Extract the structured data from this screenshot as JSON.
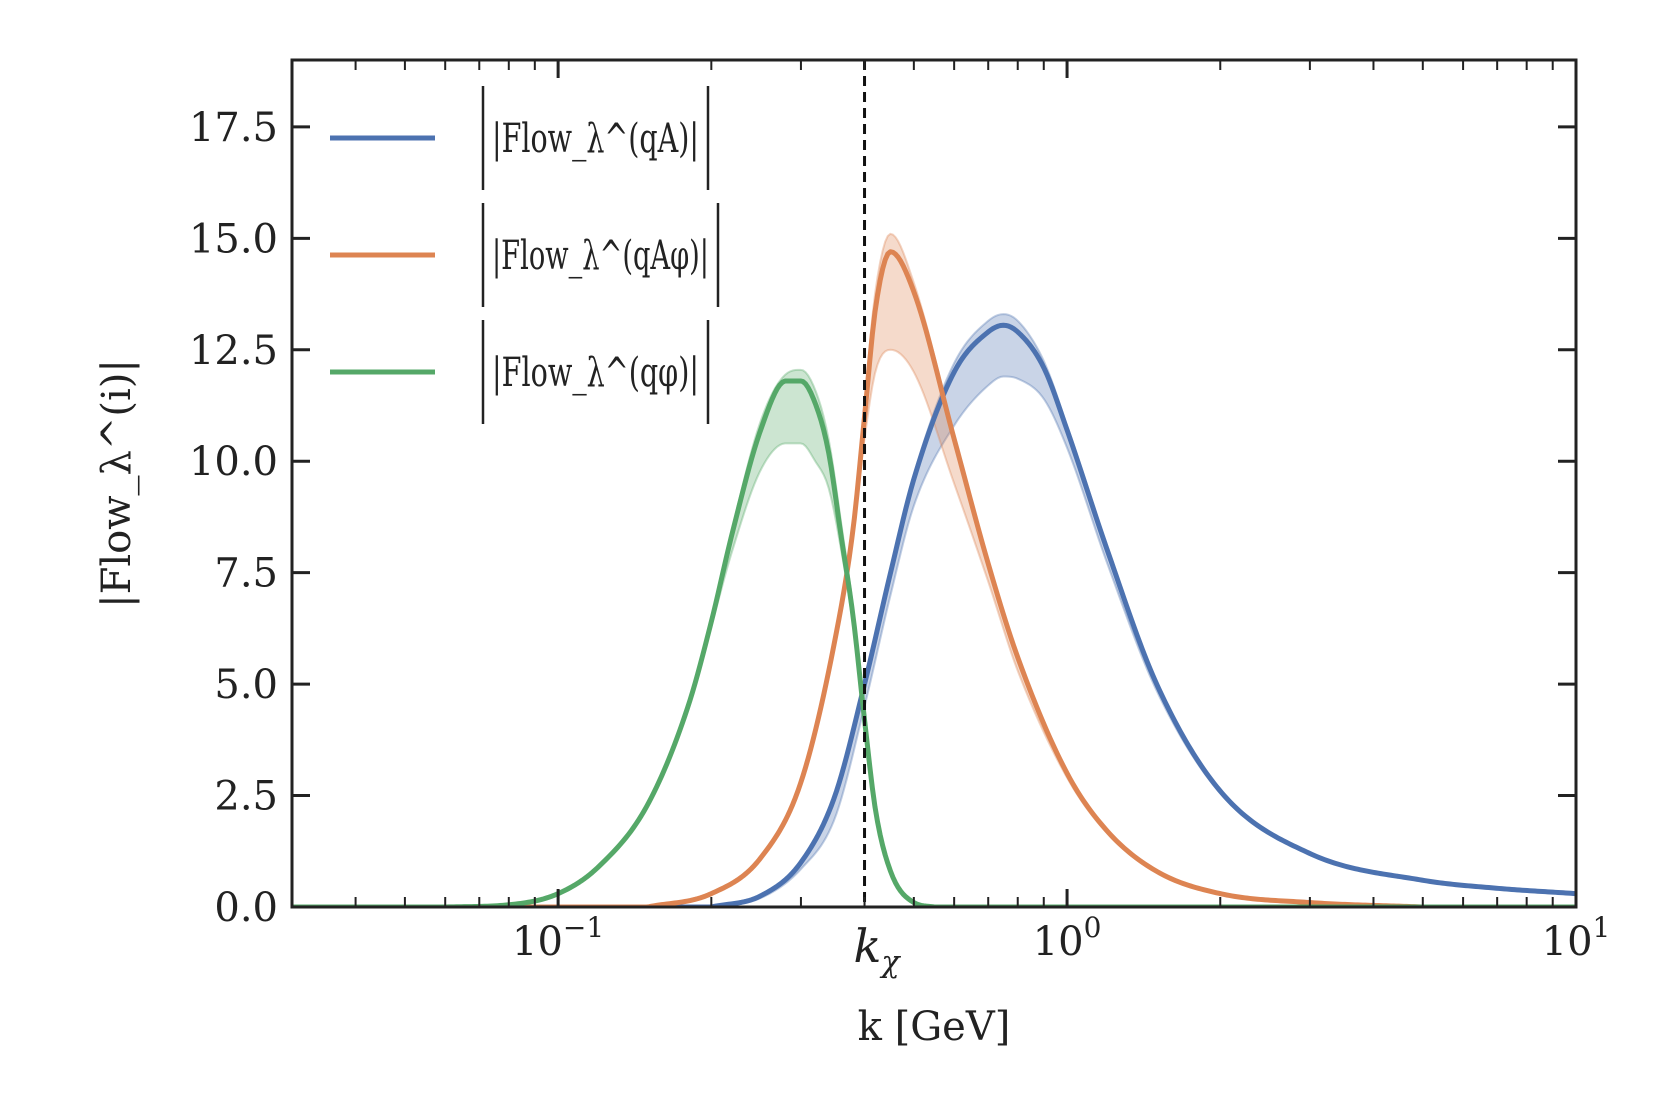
{
  "chart_data": {
    "type": "line",
    "title": "",
    "xlabel": "k [GeV]",
    "ylabel": "|Flow_λ^(i)|",
    "xscale": "log",
    "xlim": [
      0.03,
      10
    ],
    "ylim": [
      0,
      19
    ],
    "grid": false,
    "legend_position": "top-left",
    "x_ticks": [
      {
        "value": 0.1,
        "base": "10",
        "exp": "−1"
      },
      {
        "value": 1,
        "base": "10",
        "exp": "0"
      },
      {
        "value": 10,
        "base": "10",
        "exp": "1"
      }
    ],
    "y_ticks": [
      {
        "value": 0.0,
        "label": "0.0"
      },
      {
        "value": 2.5,
        "label": "2.5"
      },
      {
        "value": 5.0,
        "label": "5.0"
      },
      {
        "value": 7.5,
        "label": "7.5"
      },
      {
        "value": 10.0,
        "label": "10.0"
      },
      {
        "value": 12.5,
        "label": "12.5"
      },
      {
        "value": 15.0,
        "label": "15.0"
      },
      {
        "value": 17.5,
        "label": "17.5"
      }
    ],
    "vline": {
      "x": 0.4,
      "label_base": "k",
      "label_sub": "χ",
      "style": "dashed"
    },
    "series": [
      {
        "name": "|Flow_λ^(qA)|",
        "sup": "(qA)",
        "color": "#4C72B0",
        "x": [
          0.2,
          0.25,
          0.3,
          0.35,
          0.4,
          0.45,
          0.5,
          0.6,
          0.7,
          0.75,
          0.8,
          0.9,
          1.0,
          1.2,
          1.5,
          2.0,
          3.0,
          5.0,
          7.0,
          10.0
        ],
        "y": [
          0.0,
          0.25,
          1.0,
          2.5,
          5.0,
          7.5,
          9.6,
          12.0,
          12.9,
          13.05,
          12.9,
          12.1,
          10.7,
          8.0,
          5.0,
          2.6,
          1.2,
          0.6,
          0.42,
          0.3
        ],
        "low": [
          0.0,
          0.2,
          0.85,
          2.0,
          4.5,
          7.0,
          9.0,
          10.8,
          11.7,
          11.9,
          11.85,
          11.4,
          10.3,
          7.7,
          4.85,
          2.55,
          1.17,
          0.58,
          0.41,
          0.29
        ],
        "high": [
          0.0,
          0.25,
          1.0,
          2.5,
          5.1,
          7.6,
          9.7,
          12.2,
          13.15,
          13.3,
          13.15,
          12.25,
          10.8,
          8.1,
          5.05,
          2.65,
          1.22,
          0.61,
          0.43,
          0.31
        ]
      },
      {
        "name": "|Flow_λ^(qAφ)|",
        "sup": "(qAφ)",
        "color": "#DD8452",
        "x": [
          0.15,
          0.2,
          0.25,
          0.3,
          0.35,
          0.38,
          0.4,
          0.42,
          0.45,
          0.5,
          0.6,
          0.7,
          0.8,
          1.0,
          1.2,
          1.5,
          2.0,
          3.0,
          5.0
        ],
        "y": [
          0.0,
          0.3,
          1.1,
          2.8,
          6.0,
          8.5,
          11.0,
          13.4,
          14.7,
          13.8,
          10.5,
          7.7,
          5.6,
          3.0,
          1.7,
          0.8,
          0.3,
          0.1,
          0.0
        ],
        "low": [
          0.0,
          0.3,
          1.1,
          2.8,
          6.0,
          8.5,
          10.5,
          12.0,
          12.5,
          12.0,
          9.5,
          7.3,
          5.3,
          2.9,
          1.65,
          0.78,
          0.3,
          0.1,
          0.0
        ],
        "high": [
          0.0,
          0.3,
          1.1,
          2.8,
          6.0,
          8.6,
          11.3,
          13.8,
          15.1,
          14.0,
          10.6,
          7.75,
          5.62,
          3.02,
          1.7,
          0.8,
          0.3,
          0.1,
          0.0
        ]
      },
      {
        "name": "|Flow_λ^(qφ)|",
        "sup": "(qφ)",
        "color": "#55A868",
        "x": [
          0.06,
          0.08,
          0.1,
          0.12,
          0.15,
          0.18,
          0.2,
          0.22,
          0.25,
          0.28,
          0.3,
          0.32,
          0.34,
          0.36,
          0.38,
          0.4,
          0.42,
          0.45,
          0.5,
          0.55
        ],
        "y": [
          0.0,
          0.05,
          0.3,
          0.9,
          2.3,
          4.5,
          6.4,
          8.4,
          10.7,
          11.8,
          11.8,
          11.3,
          10.2,
          8.3,
          6.5,
          4.2,
          2.2,
          0.8,
          0.1,
          0.0
        ],
        "low": [
          0.0,
          0.05,
          0.3,
          0.9,
          2.3,
          4.5,
          6.3,
          8.0,
          9.8,
          10.4,
          10.4,
          10.0,
          9.4,
          8.0,
          6.3,
          4.0,
          2.1,
          0.75,
          0.1,
          0.0
        ],
        "high": [
          0.0,
          0.05,
          0.3,
          0.9,
          2.3,
          4.5,
          6.4,
          8.5,
          10.9,
          11.95,
          12.05,
          11.6,
          10.5,
          8.6,
          6.7,
          4.4,
          2.3,
          0.85,
          0.1,
          0.0
        ]
      }
    ]
  }
}
